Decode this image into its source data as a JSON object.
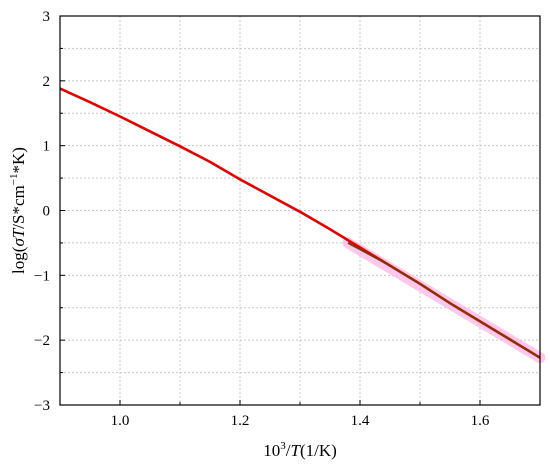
{
  "chart_data": {
    "type": "line",
    "title": "",
    "xlabel": {
      "pre": "10",
      "sup": "3",
      "post": "/",
      "italic": "T",
      "rest": "(1/K)"
    },
    "ylabel": {
      "pre": "log(",
      "greek": "σ",
      "italic": "T",
      "mid": "/S*cm",
      "sup": "−1",
      "rest": "*K)"
    },
    "xlim": [
      0.9,
      1.7
    ],
    "ylim": [
      -3,
      3
    ],
    "xticks": [
      1.0,
      1.2,
      1.4,
      1.6
    ],
    "xtick_labels": [
      "1.0",
      "1.2",
      "1.4",
      "1.6"
    ],
    "yticks": [
      3,
      2,
      1,
      0,
      -1,
      -2,
      -3
    ],
    "ytick_labels": [
      "3",
      "2",
      "1",
      "0",
      "−1",
      "−2",
      "−3"
    ],
    "grid": true,
    "series": [
      {
        "color": "#e00000",
        "x": [
          0.9,
          0.95,
          1.0,
          1.05,
          1.1,
          1.15,
          1.2,
          1.25,
          1.3,
          1.35,
          1.4,
          1.45,
          1.5,
          1.55,
          1.6,
          1.65,
          1.7
        ],
        "y": [
          1.88,
          1.67,
          1.45,
          1.22,
          0.99,
          0.75,
          0.48,
          0.23,
          -0.02,
          -0.29,
          -0.57,
          -0.85,
          -1.13,
          -1.43,
          -1.71,
          -1.99,
          -2.27
        ]
      },
      {
        "color": "#7a3a00",
        "x": [
          1.38,
          1.45,
          1.5,
          1.55,
          1.6,
          1.65,
          1.7
        ],
        "y": [
          -0.5,
          -0.85,
          -1.13,
          -1.43,
          -1.71,
          -1.99,
          -2.27
        ]
      }
    ],
    "highlight_band": {
      "color": "#ffb6e6",
      "x": [
        1.38,
        1.7
      ],
      "y": [
        -0.5,
        -2.27
      ]
    }
  }
}
